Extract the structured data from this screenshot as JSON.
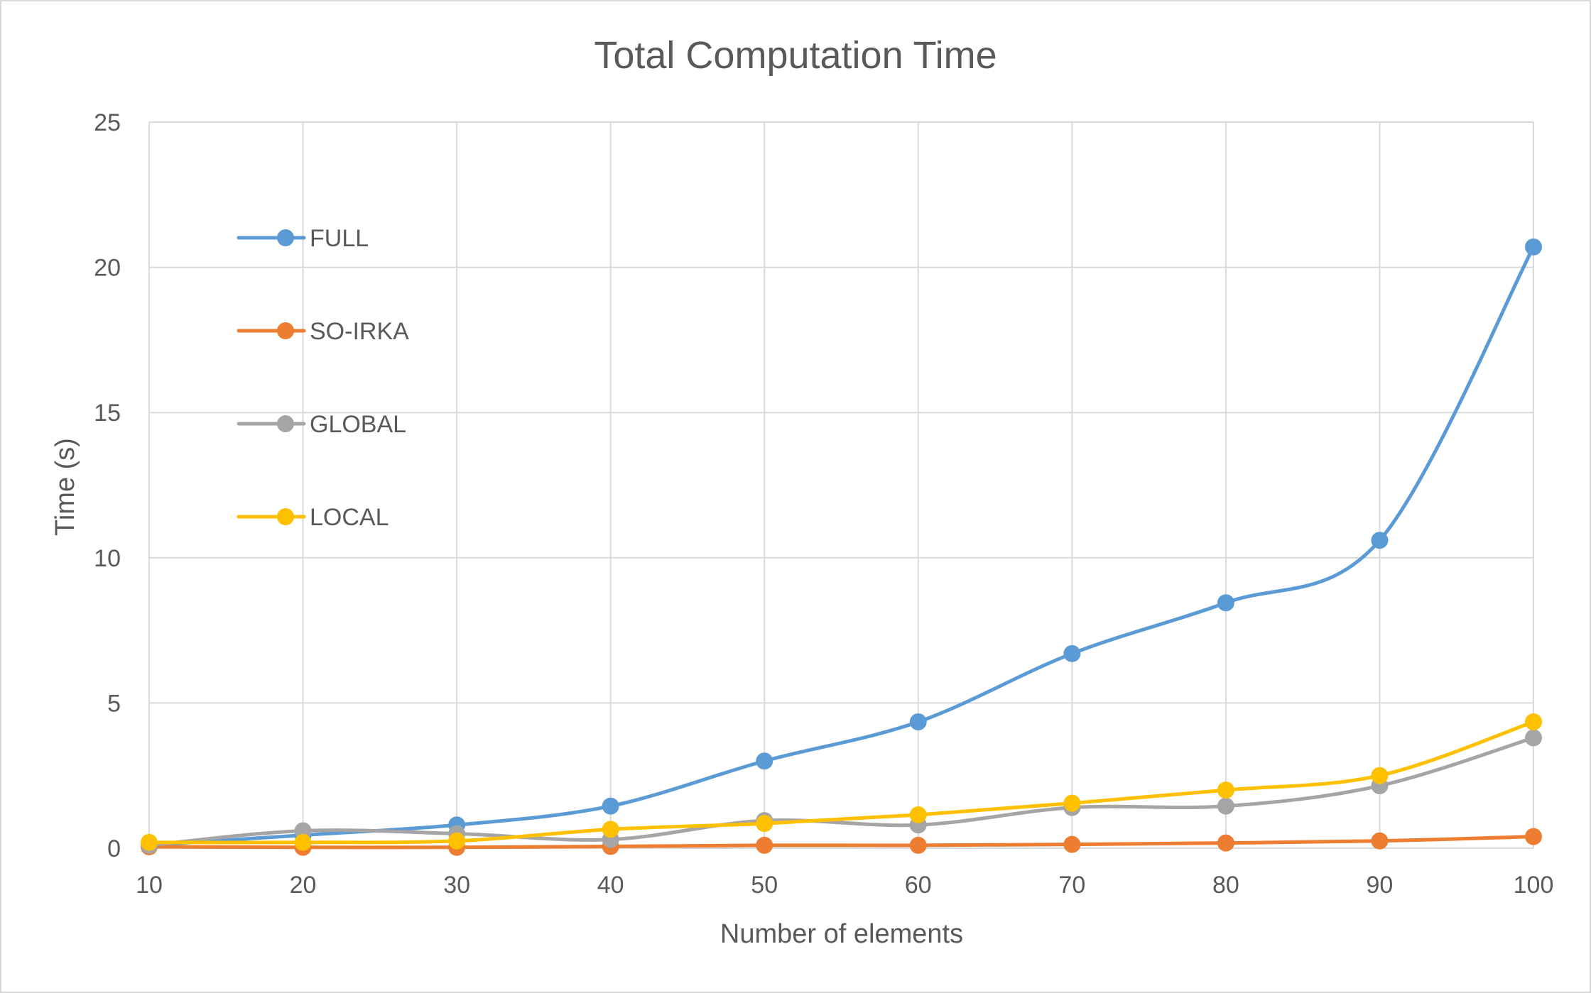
{
  "chart_data": {
    "type": "line",
    "title": "Total Computation Time",
    "xlabel": "Number of elements",
    "ylabel": "Time (s)",
    "x": [
      10,
      20,
      30,
      40,
      50,
      60,
      70,
      80,
      90,
      100
    ],
    "xlim": [
      10,
      100
    ],
    "ylim": [
      0,
      25
    ],
    "yticks": [
      0,
      5,
      10,
      15,
      20,
      25
    ],
    "grid": true,
    "smooth": true,
    "legend_position": "left",
    "series": [
      {
        "name": "FULL",
        "color": "#5b9bd5",
        "values": [
          0.1,
          0.45,
          0.8,
          1.45,
          3.0,
          4.35,
          6.7,
          8.45,
          10.6,
          20.7
        ]
      },
      {
        "name": "SO-IRKA",
        "color": "#ed7d31",
        "values": [
          0.05,
          0.03,
          0.03,
          0.06,
          0.1,
          0.1,
          0.13,
          0.18,
          0.25,
          0.4
        ]
      },
      {
        "name": "GLOBAL",
        "color": "#a5a5a5",
        "values": [
          0.1,
          0.6,
          0.5,
          0.3,
          0.95,
          0.8,
          1.4,
          1.45,
          2.15,
          3.8
        ]
      },
      {
        "name": "LOCAL",
        "color": "#ffc000",
        "values": [
          0.2,
          0.2,
          0.25,
          0.65,
          0.85,
          1.15,
          1.55,
          2.0,
          2.5,
          4.35
        ]
      }
    ]
  }
}
